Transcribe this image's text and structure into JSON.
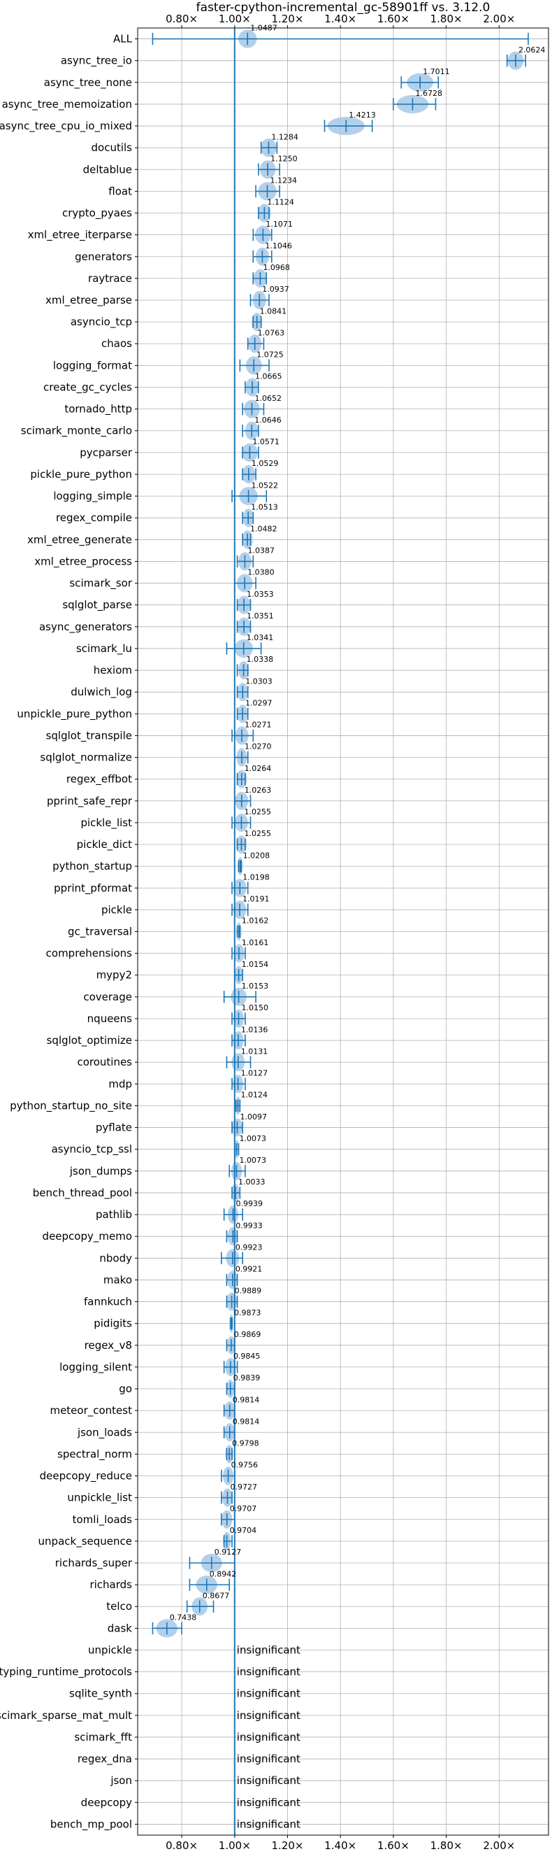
{
  "chart_data": {
    "type": "violin",
    "title": "faster-cpython-incremental_gc-58901ff vs. 3.12.0",
    "xlabel": "",
    "ylabel": "",
    "xlim": [
      0.6333,
      2.1867
    ],
    "x_ticks": [
      0.8,
      1.0,
      1.2,
      1.4,
      1.6,
      1.8,
      2.0
    ],
    "x_tick_labels": [
      "0.80×",
      "1.00×",
      "1.20×",
      "1.40×",
      "1.60×",
      "1.80×",
      "2.00×"
    ],
    "reference_line": 1.0,
    "grid": true,
    "insignificant_label": "insignificant",
    "colors": {
      "accent": "#1f77b4",
      "violin": "#a6c8e8",
      "grid": "#b0b0b0"
    },
    "benchmarks": [
      {
        "name": "ALL",
        "value": 1.0487,
        "label": "1.0487",
        "lo": 0.69,
        "hi": 2.11,
        "w": 0.035
      },
      {
        "name": "async_tree_io",
        "value": 2.0624,
        "label": "2.0624",
        "lo": 2.03,
        "hi": 2.1,
        "w": 0.03
      },
      {
        "name": "async_tree_none",
        "value": 1.7011,
        "label": "1.7011",
        "lo": 1.63,
        "hi": 1.77,
        "w": 0.05
      },
      {
        "name": "async_tree_memoization",
        "value": 1.6728,
        "label": "1.6728",
        "lo": 1.6,
        "hi": 1.76,
        "w": 0.06
      },
      {
        "name": "async_tree_cpu_io_mixed",
        "value": 1.4213,
        "label": "1.4213",
        "lo": 1.34,
        "hi": 1.52,
        "w": 0.07
      },
      {
        "name": "docutils",
        "value": 1.1284,
        "label": "1.1284",
        "lo": 1.1,
        "hi": 1.16,
        "w": 0.03
      },
      {
        "name": "deltablue",
        "value": 1.125,
        "label": "1.1250",
        "lo": 1.09,
        "hi": 1.17,
        "w": 0.03
      },
      {
        "name": "float",
        "value": 1.1234,
        "label": "1.1234",
        "lo": 1.08,
        "hi": 1.17,
        "w": 0.035
      },
      {
        "name": "crypto_pyaes",
        "value": 1.1124,
        "label": "1.1124",
        "lo": 1.09,
        "hi": 1.13,
        "w": 0.025
      },
      {
        "name": "xml_etree_iterparse",
        "value": 1.1071,
        "label": "1.1071",
        "lo": 1.07,
        "hi": 1.14,
        "w": 0.03
      },
      {
        "name": "generators",
        "value": 1.1046,
        "label": "1.1046",
        "lo": 1.07,
        "hi": 1.14,
        "w": 0.025
      },
      {
        "name": "raytrace",
        "value": 1.0968,
        "label": "1.0968",
        "lo": 1.07,
        "hi": 1.12,
        "w": 0.025
      },
      {
        "name": "xml_etree_parse",
        "value": 1.0937,
        "label": "1.0937",
        "lo": 1.06,
        "hi": 1.13,
        "w": 0.025
      },
      {
        "name": "asyncio_tcp",
        "value": 1.0841,
        "label": "1.0841",
        "lo": 1.07,
        "hi": 1.1,
        "w": 0.02
      },
      {
        "name": "chaos",
        "value": 1.0763,
        "label": "1.0763",
        "lo": 1.05,
        "hi": 1.11,
        "w": 0.025
      },
      {
        "name": "logging_format",
        "value": 1.0725,
        "label": "1.0725",
        "lo": 1.02,
        "hi": 1.13,
        "w": 0.03
      },
      {
        "name": "create_gc_cycles",
        "value": 1.0665,
        "label": "1.0665",
        "lo": 1.04,
        "hi": 1.09,
        "w": 0.025
      },
      {
        "name": "tornado_http",
        "value": 1.0652,
        "label": "1.0652",
        "lo": 1.03,
        "hi": 1.11,
        "w": 0.03
      },
      {
        "name": "scimark_monte_carlo",
        "value": 1.0646,
        "label": "1.0646",
        "lo": 1.03,
        "hi": 1.09,
        "w": 0.025
      },
      {
        "name": "pycparser",
        "value": 1.0571,
        "label": "1.0571",
        "lo": 1.03,
        "hi": 1.09,
        "w": 0.03
      },
      {
        "name": "pickle_pure_python",
        "value": 1.0529,
        "label": "1.0529",
        "lo": 1.03,
        "hi": 1.08,
        "w": 0.025
      },
      {
        "name": "logging_simple",
        "value": 1.0522,
        "label": "1.0522",
        "lo": 0.99,
        "hi": 1.12,
        "w": 0.035
      },
      {
        "name": "regex_compile",
        "value": 1.0513,
        "label": "1.0513",
        "lo": 1.03,
        "hi": 1.07,
        "w": 0.02
      },
      {
        "name": "xml_etree_generate",
        "value": 1.0482,
        "label": "1.0482",
        "lo": 1.03,
        "hi": 1.06,
        "w": 0.02
      },
      {
        "name": "xml_etree_process",
        "value": 1.0387,
        "label": "1.0387",
        "lo": 1.01,
        "hi": 1.07,
        "w": 0.025
      },
      {
        "name": "scimark_sor",
        "value": 1.038,
        "label": "1.0380",
        "lo": 1.0,
        "hi": 1.08,
        "w": 0.03
      },
      {
        "name": "sqlglot_parse",
        "value": 1.0353,
        "label": "1.0353",
        "lo": 1.01,
        "hi": 1.06,
        "w": 0.025
      },
      {
        "name": "async_generators",
        "value": 1.0351,
        "label": "1.0351",
        "lo": 1.01,
        "hi": 1.06,
        "w": 0.025
      },
      {
        "name": "scimark_lu",
        "value": 1.0341,
        "label": "1.0341",
        "lo": 0.97,
        "hi": 1.1,
        "w": 0.035
      },
      {
        "name": "hexiom",
        "value": 1.0338,
        "label": "1.0338",
        "lo": 1.01,
        "hi": 1.05,
        "w": 0.02
      },
      {
        "name": "dulwich_log",
        "value": 1.0303,
        "label": "1.0303",
        "lo": 1.01,
        "hi": 1.05,
        "w": 0.02
      },
      {
        "name": "unpickle_pure_python",
        "value": 1.0297,
        "label": "1.0297",
        "lo": 1.01,
        "hi": 1.05,
        "w": 0.02
      },
      {
        "name": "sqlglot_transpile",
        "value": 1.0271,
        "label": "1.0271",
        "lo": 0.99,
        "hi": 1.07,
        "w": 0.025
      },
      {
        "name": "sqlglot_normalize",
        "value": 1.027,
        "label": "1.0270",
        "lo": 1.0,
        "hi": 1.05,
        "w": 0.02
      },
      {
        "name": "regex_effbot",
        "value": 1.0264,
        "label": "1.0264",
        "lo": 1.01,
        "hi": 1.04,
        "w": 0.02
      },
      {
        "name": "pprint_safe_repr",
        "value": 1.0263,
        "label": "1.0263",
        "lo": 1.0,
        "hi": 1.06,
        "w": 0.025
      },
      {
        "name": "pickle_list",
        "value": 1.0255,
        "label": "1.0255",
        "lo": 0.99,
        "hi": 1.06,
        "w": 0.025
      },
      {
        "name": "pickle_dict",
        "value": 1.0255,
        "label": "1.0255",
        "lo": 1.01,
        "hi": 1.04,
        "w": 0.02
      },
      {
        "name": "python_startup",
        "value": 1.0208,
        "label": "1.0208",
        "lo": 1.015,
        "hi": 1.025,
        "w": 0.01
      },
      {
        "name": "pprint_pformat",
        "value": 1.0198,
        "label": "1.0198",
        "lo": 0.99,
        "hi": 1.05,
        "w": 0.025
      },
      {
        "name": "pickle",
        "value": 1.0191,
        "label": "1.0191",
        "lo": 0.99,
        "hi": 1.05,
        "w": 0.025
      },
      {
        "name": "gc_traversal",
        "value": 1.0162,
        "label": "1.0162",
        "lo": 1.01,
        "hi": 1.02,
        "w": 0.01
      },
      {
        "name": "comprehensions",
        "value": 1.0161,
        "label": "1.0161",
        "lo": 0.99,
        "hi": 1.04,
        "w": 0.02
      },
      {
        "name": "mypy2",
        "value": 1.0154,
        "label": "1.0154",
        "lo": 1.0,
        "hi": 1.03,
        "w": 0.015
      },
      {
        "name": "coverage",
        "value": 1.0153,
        "label": "1.0153",
        "lo": 0.96,
        "hi": 1.08,
        "w": 0.03
      },
      {
        "name": "nqueens",
        "value": 1.015,
        "label": "1.0150",
        "lo": 0.99,
        "hi": 1.04,
        "w": 0.02
      },
      {
        "name": "sqlglot_optimize",
        "value": 1.0136,
        "label": "1.0136",
        "lo": 0.99,
        "hi": 1.04,
        "w": 0.02
      },
      {
        "name": "coroutines",
        "value": 1.0131,
        "label": "1.0131",
        "lo": 0.97,
        "hi": 1.06,
        "w": 0.025
      },
      {
        "name": "mdp",
        "value": 1.0127,
        "label": "1.0127",
        "lo": 0.99,
        "hi": 1.04,
        "w": 0.02
      },
      {
        "name": "python_startup_no_site",
        "value": 1.0124,
        "label": "1.0124",
        "lo": 1.005,
        "hi": 1.02,
        "w": 0.01
      },
      {
        "name": "pyflate",
        "value": 1.0097,
        "label": "1.0097",
        "lo": 0.99,
        "hi": 1.03,
        "w": 0.02
      },
      {
        "name": "asyncio_tcp_ssl",
        "value": 1.0073,
        "label": "1.0073",
        "lo": 1.0,
        "hi": 1.015,
        "w": 0.01
      },
      {
        "name": "json_dumps",
        "value": 1.0073,
        "label": "1.0073",
        "lo": 0.98,
        "hi": 1.04,
        "w": 0.02
      },
      {
        "name": "bench_thread_pool",
        "value": 1.0033,
        "label": "1.0033",
        "lo": 0.99,
        "hi": 1.02,
        "w": 0.015
      },
      {
        "name": "pathlib",
        "value": 0.9939,
        "label": "0.9939",
        "lo": 0.96,
        "hi": 1.03,
        "w": 0.02
      },
      {
        "name": "deepcopy_memo",
        "value": 0.9933,
        "label": "0.9933",
        "lo": 0.97,
        "hi": 1.01,
        "w": 0.02
      },
      {
        "name": "nbody",
        "value": 0.9923,
        "label": "0.9923",
        "lo": 0.95,
        "hi": 1.03,
        "w": 0.025
      },
      {
        "name": "mako",
        "value": 0.9921,
        "label": "0.9921",
        "lo": 0.97,
        "hi": 1.01,
        "w": 0.02
      },
      {
        "name": "fannkuch",
        "value": 0.9889,
        "label": "0.9889",
        "lo": 0.97,
        "hi": 1.01,
        "w": 0.02
      },
      {
        "name": "pidigits",
        "value": 0.9873,
        "label": "0.9873",
        "lo": 0.985,
        "hi": 0.99,
        "w": 0.005
      },
      {
        "name": "regex_v8",
        "value": 0.9869,
        "label": "0.9869",
        "lo": 0.97,
        "hi": 1.0,
        "w": 0.015
      },
      {
        "name": "logging_silent",
        "value": 0.9845,
        "label": "0.9845",
        "lo": 0.96,
        "hi": 1.01,
        "w": 0.02
      },
      {
        "name": "go",
        "value": 0.9839,
        "label": "0.9839",
        "lo": 0.97,
        "hi": 1.0,
        "w": 0.015
      },
      {
        "name": "meteor_contest",
        "value": 0.9814,
        "label": "0.9814",
        "lo": 0.96,
        "hi": 1.0,
        "w": 0.02
      },
      {
        "name": "json_loads",
        "value": 0.9814,
        "label": "0.9814",
        "lo": 0.96,
        "hi": 1.0,
        "w": 0.02
      },
      {
        "name": "spectral_norm",
        "value": 0.9798,
        "label": "0.9798",
        "lo": 0.97,
        "hi": 0.99,
        "w": 0.015
      },
      {
        "name": "deepcopy_reduce",
        "value": 0.9756,
        "label": "0.9756",
        "lo": 0.95,
        "hi": 1.0,
        "w": 0.02
      },
      {
        "name": "unpickle_list",
        "value": 0.9727,
        "label": "0.9727",
        "lo": 0.95,
        "hi": 0.99,
        "w": 0.02
      },
      {
        "name": "tomli_loads",
        "value": 0.9707,
        "label": "0.9707",
        "lo": 0.95,
        "hi": 1.0,
        "w": 0.02
      },
      {
        "name": "unpack_sequence",
        "value": 0.9704,
        "label": "0.9704",
        "lo": 0.96,
        "hi": 0.99,
        "w": 0.015
      },
      {
        "name": "richards_super",
        "value": 0.9127,
        "label": "0.9127",
        "lo": 0.83,
        "hi": 1.0,
        "w": 0.04
      },
      {
        "name": "richards",
        "value": 0.8942,
        "label": "0.8942",
        "lo": 0.83,
        "hi": 0.98,
        "w": 0.04
      },
      {
        "name": "telco",
        "value": 0.8677,
        "label": "0.8677",
        "lo": 0.82,
        "hi": 0.92,
        "w": 0.03
      },
      {
        "name": "dask",
        "value": 0.7438,
        "label": "0.7438",
        "lo": 0.69,
        "hi": 0.8,
        "w": 0.04
      },
      {
        "name": "unpickle",
        "insignificant": true
      },
      {
        "name": "typing_runtime_protocols",
        "insignificant": true
      },
      {
        "name": "sqlite_synth",
        "insignificant": true
      },
      {
        "name": "scimark_sparse_mat_mult",
        "insignificant": true
      },
      {
        "name": "scimark_fft",
        "insignificant": true
      },
      {
        "name": "regex_dna",
        "insignificant": true
      },
      {
        "name": "json",
        "insignificant": true
      },
      {
        "name": "deepcopy",
        "insignificant": true
      },
      {
        "name": "bench_mp_pool",
        "insignificant": true
      }
    ]
  }
}
